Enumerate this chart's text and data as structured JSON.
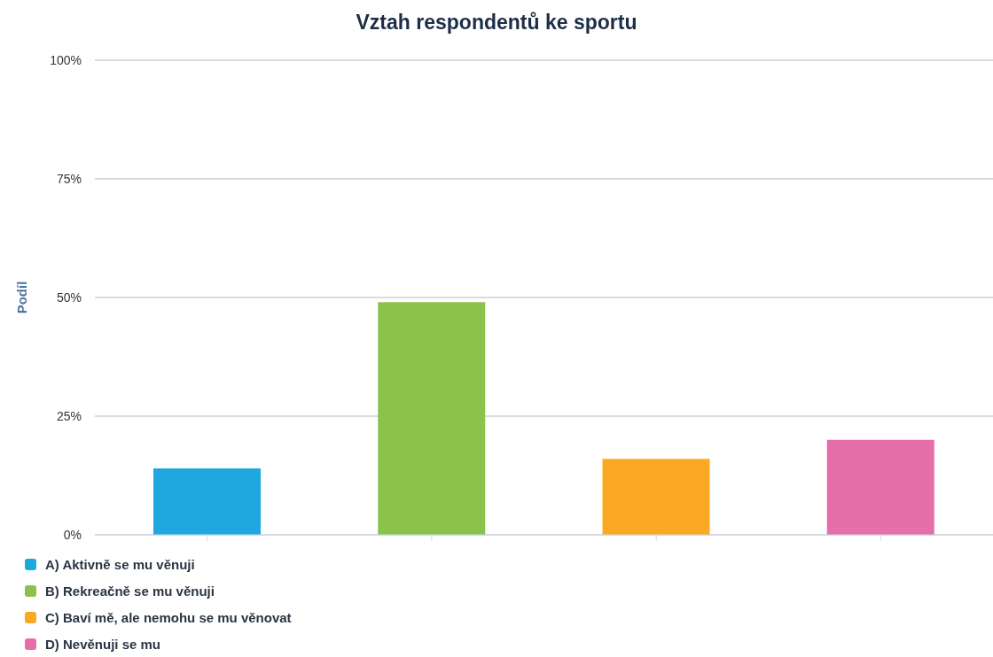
{
  "chart_data": {
    "type": "bar",
    "title": "Vztah respondentů ke sportu",
    "ylabel": "Podíl",
    "categories": [
      null,
      null,
      null,
      null
    ],
    "series": [
      {
        "name": "A) Aktivně se mu věnuji",
        "color": "#1fa8e0",
        "values": [
          14,
          null,
          null,
          null
        ]
      },
      {
        "name": "B) Rekreačně se mu věnuji",
        "color": "#8bc34a",
        "values": [
          null,
          49,
          null,
          null
        ]
      },
      {
        "name": "C) Baví mě, ale nemohu se mu věnovat",
        "color": "#fba922",
        "values": [
          null,
          null,
          16,
          null
        ]
      },
      {
        "name": "D) Nevěnuji se mu",
        "color": "#e66ea9",
        "values": [
          null,
          null,
          null,
          20
        ]
      }
    ],
    "ylim": [
      0,
      100
    ],
    "yticks": [
      {
        "value": 0,
        "label": "0%"
      },
      {
        "value": 25,
        "label": "25%"
      },
      {
        "value": 50,
        "label": "50%"
      },
      {
        "value": 75,
        "label": "75%"
      },
      {
        "value": 100,
        "label": "100%"
      }
    ],
    "grid": "y",
    "legend": "bottom left"
  }
}
